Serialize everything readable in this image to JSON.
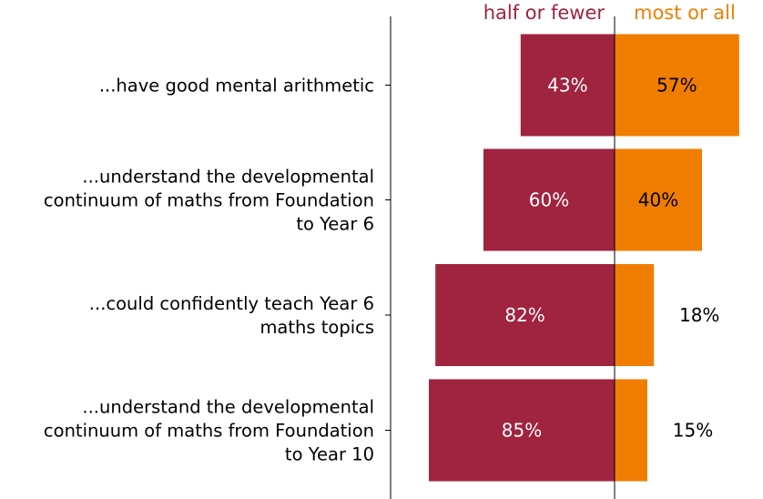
{
  "chart_data": {
    "type": "bar",
    "orientation": "horizontal-diverging",
    "series": [
      {
        "name": "half or fewer",
        "color": "#A0233F",
        "values": [
          43,
          60,
          82,
          85
        ],
        "labels": [
          "43%",
          "60%",
          "82%",
          "85%"
        ]
      },
      {
        "name": "most or all",
        "color": "#F07D00",
        "values": [
          57,
          40,
          18,
          15
        ],
        "labels": [
          "57%",
          "40%",
          "18%",
          "15%"
        ]
      }
    ],
    "categories": [
      [
        "...have good mental arithmetic"
      ],
      [
        "...understand the developmental",
        "continuum of maths from Foundation",
        "to Year 6"
      ],
      [
        "...could confidently teach Year 6",
        "maths topics"
      ],
      [
        "...understand the developmental",
        "continuum of maths from Foundation",
        "to Year 10"
      ]
    ],
    "xlim": [
      -100,
      100
    ],
    "legend_position": "top",
    "grid": false
  }
}
